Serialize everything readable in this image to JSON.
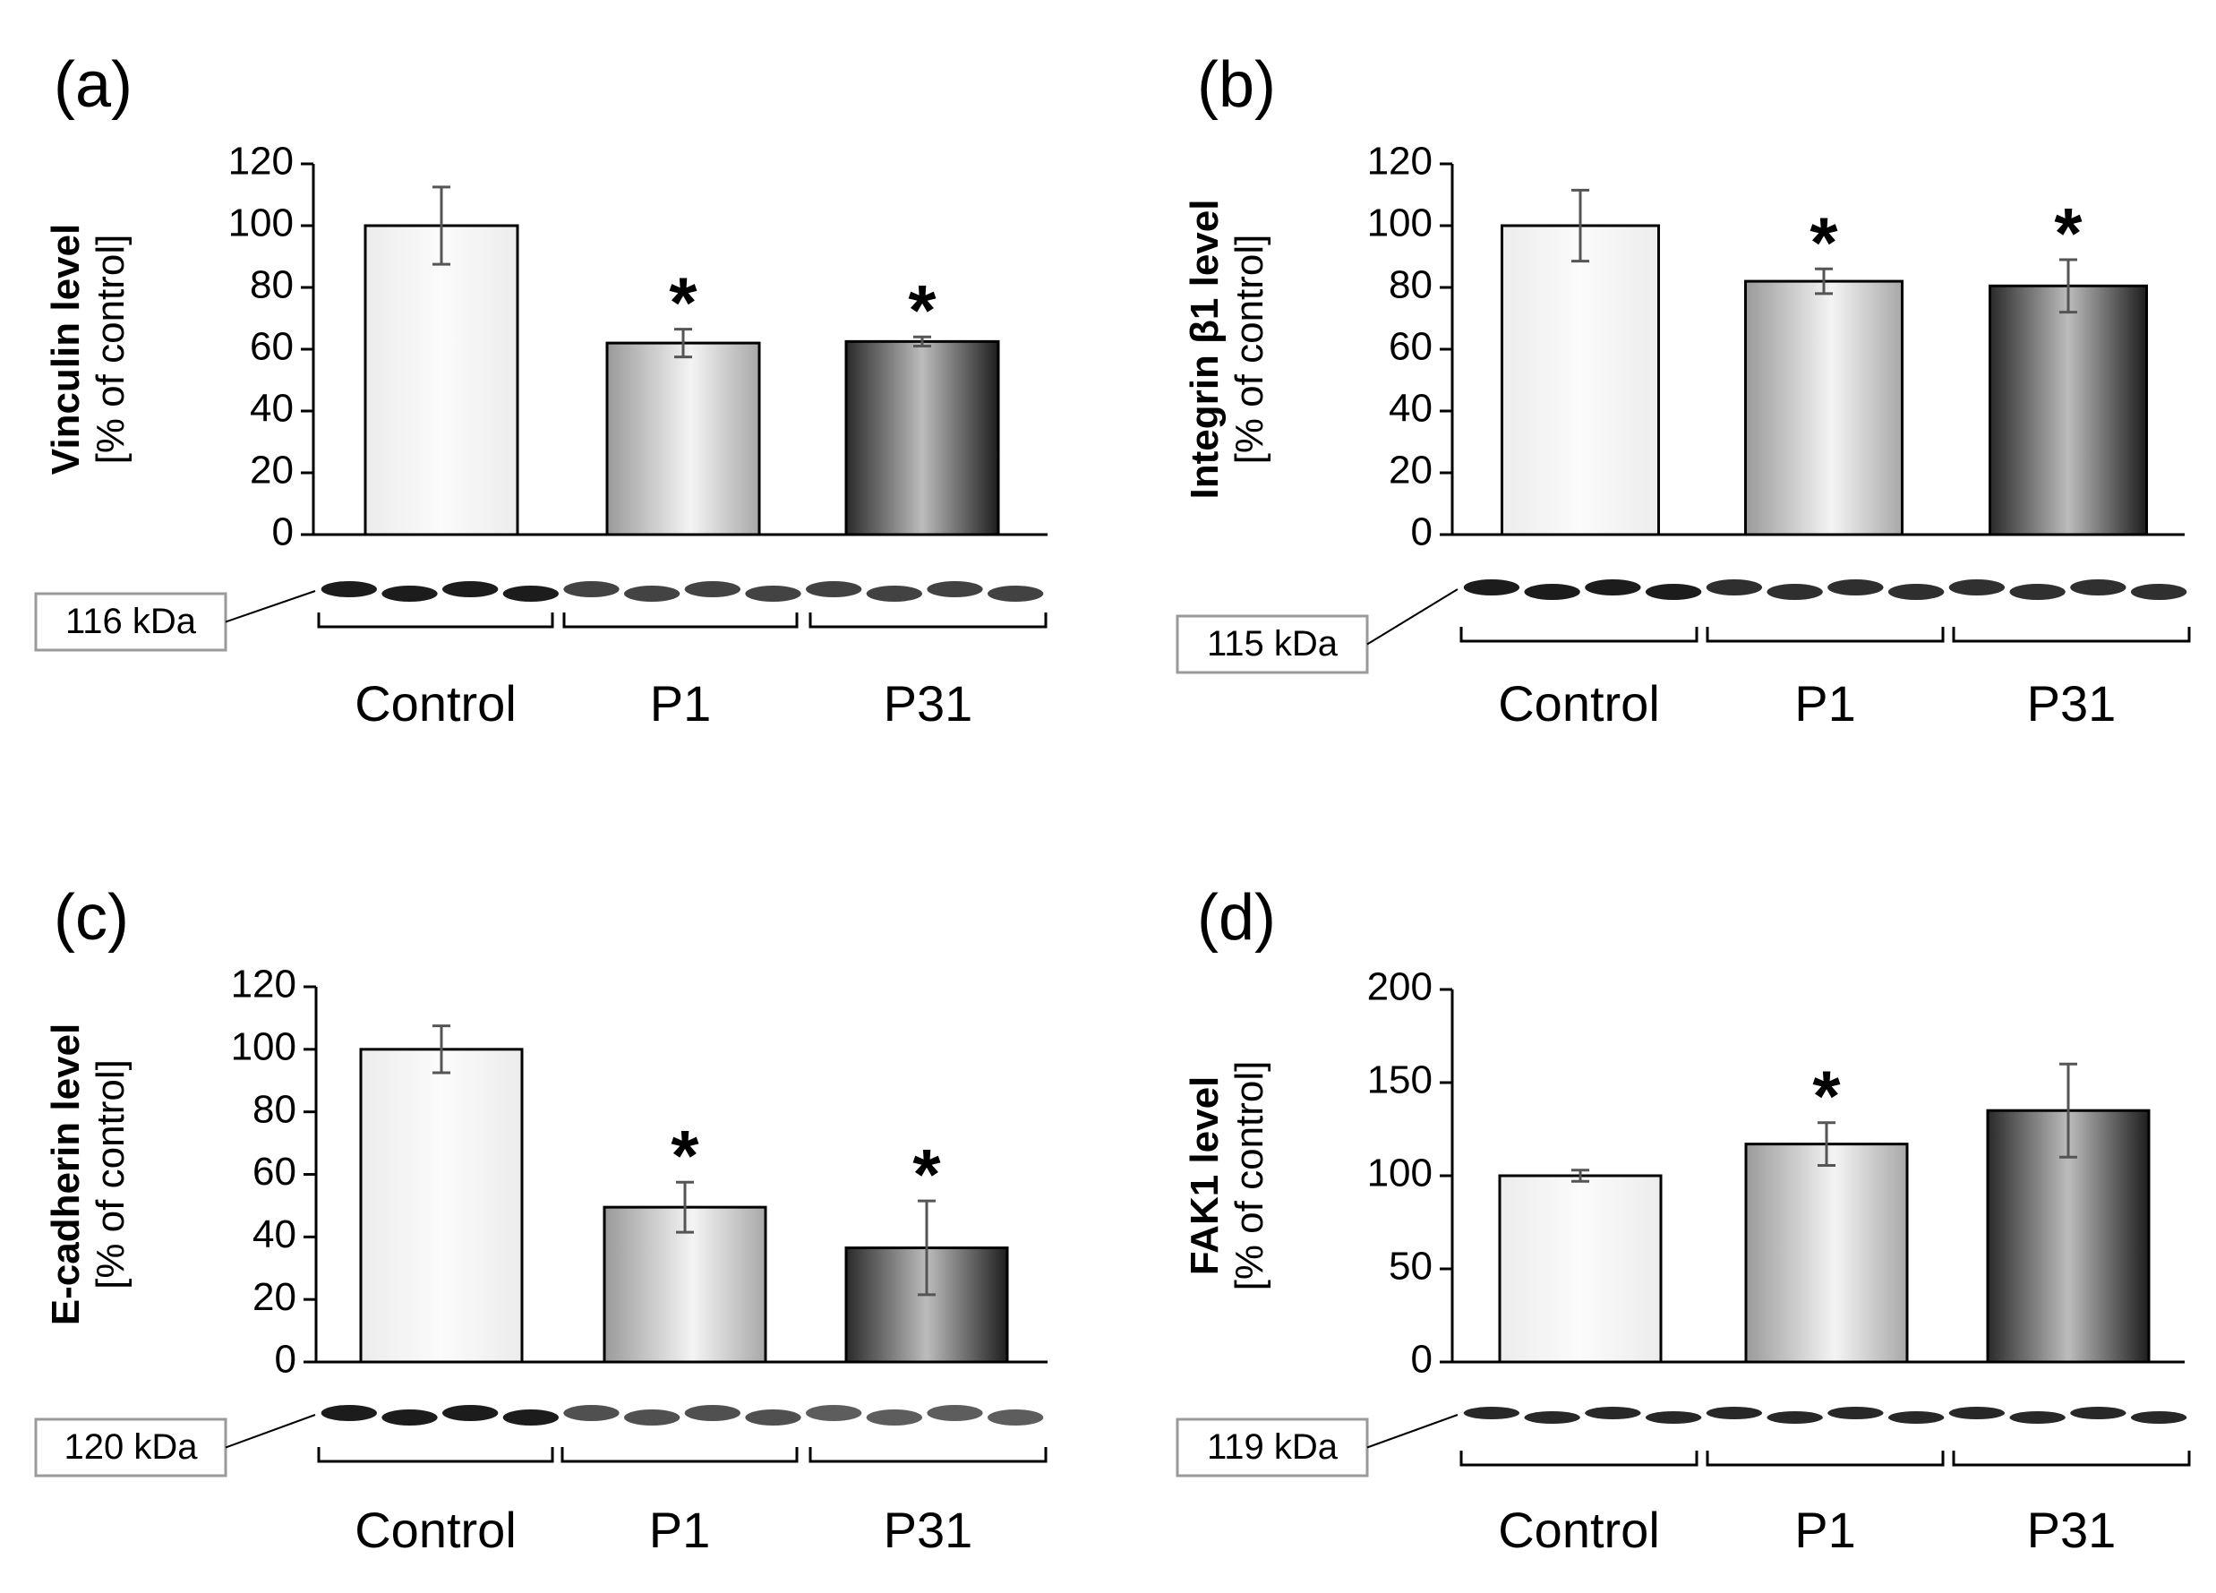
{
  "figure": {
    "colors": {
      "control_bar": "#f2f2f2",
      "p1_bar_light": "#f4f4f4",
      "p1_bar_dark": "#9a9a9a",
      "p31_bar_light": "#bcbcbc",
      "p31_bar_dark": "#1e1e1e",
      "band": "#1c1c1c",
      "axis": "#000000",
      "kda_border": "#9a9a9a"
    }
  },
  "chart_data": [
    {
      "id": "a",
      "type": "bar",
      "panel_label": "(a)",
      "ylabel_bold": "Vinculin level",
      "ylabel": "[% of control]",
      "ylim": [
        0,
        120
      ],
      "yticks": [
        0,
        20,
        40,
        60,
        80,
        100,
        120
      ],
      "categories": [
        "Control",
        "P1",
        "P31"
      ],
      "values": [
        100,
        62,
        62.5
      ],
      "errors": [
        12.5,
        4.5,
        1.5
      ],
      "significant": [
        false,
        true,
        true
      ],
      "star_symbol": "*",
      "blot_label": "116 kDa",
      "lanes_per_group": 4
    },
    {
      "id": "b",
      "type": "bar",
      "panel_label": "(b)",
      "ylabel_bold": "Integrin β1 level",
      "ylabel": "[% of control]",
      "ylim": [
        0,
        120
      ],
      "yticks": [
        0,
        20,
        40,
        60,
        80,
        100,
        120
      ],
      "categories": [
        "Control",
        "P1",
        "P31"
      ],
      "values": [
        100,
        82,
        80.5
      ],
      "errors": [
        11.5,
        4,
        8.5
      ],
      "significant": [
        false,
        true,
        true
      ],
      "star_symbol": "*",
      "blot_label": "115 kDa",
      "lanes_per_group": 4
    },
    {
      "id": "c",
      "type": "bar",
      "panel_label": "(c)",
      "ylabel_bold": "E-cadherin level",
      "ylabel": "[% of control]",
      "ylim": [
        0,
        120
      ],
      "yticks": [
        0,
        20,
        40,
        60,
        80,
        100,
        120
      ],
      "categories": [
        "Control",
        "P1",
        "P31"
      ],
      "values": [
        100,
        49.5,
        36.5
      ],
      "errors": [
        7.5,
        8,
        15
      ],
      "significant": [
        false,
        true,
        true
      ],
      "star_symbol": "*",
      "blot_label": "120 kDa",
      "lanes_per_group": 4
    },
    {
      "id": "d",
      "type": "bar",
      "panel_label": "(d)",
      "ylabel_bold": "FAK1 level",
      "ylabel": "[% of control]",
      "ylim": [
        0,
        200
      ],
      "yticks": [
        0,
        50,
        100,
        150,
        200
      ],
      "categories": [
        "Control",
        "P1",
        "P31"
      ],
      "values": [
        100,
        117,
        135
      ],
      "errors": [
        3,
        11.5,
        25
      ],
      "significant": [
        false,
        true,
        false
      ],
      "star_symbol": "*",
      "blot_label": "119 kDa",
      "lanes_per_group": 4
    }
  ]
}
